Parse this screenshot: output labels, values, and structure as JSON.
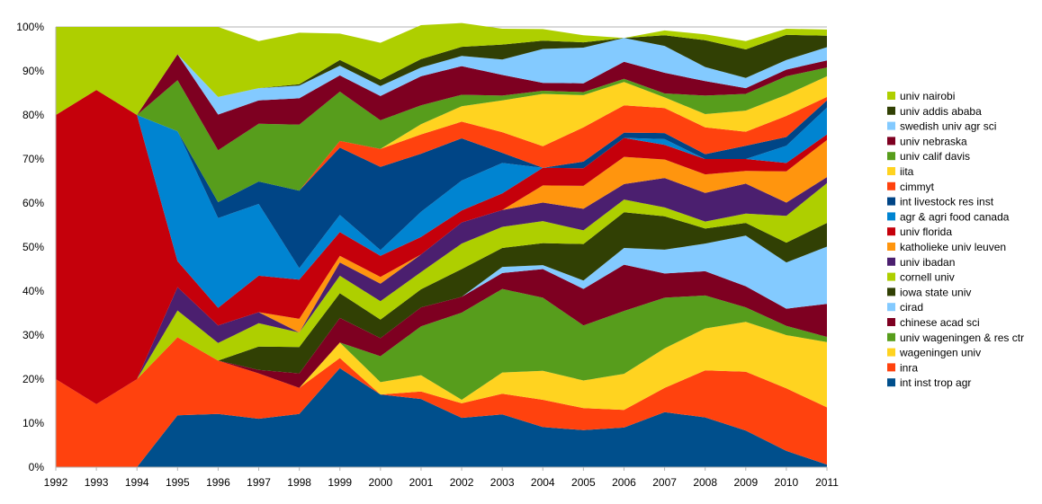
{
  "chart_data": {
    "type": "area",
    "stacked": true,
    "normalized": true,
    "x": [
      1992,
      1993,
      1994,
      1995,
      1996,
      1997,
      1998,
      1999,
      2000,
      2001,
      2002,
      2003,
      2004,
      2005,
      2006,
      2007,
      2008,
      2009,
      2010,
      2011
    ],
    "ylim": [
      0,
      100
    ],
    "y_ticks": [
      "0%",
      "10%",
      "20%",
      "30%",
      "40%",
      "50%",
      "60%",
      "70%",
      "80%",
      "90%",
      "100%"
    ],
    "x_ticks": [
      "1992",
      "1993",
      "1994",
      "1995",
      "1996",
      "1997",
      "1998",
      "1999",
      "2000",
      "2001",
      "2002",
      "2003",
      "2004",
      "2005",
      "2006",
      "2007",
      "2008",
      "2009",
      "2010",
      "2011"
    ],
    "grid": true,
    "legend_position": "right",
    "series": [
      {
        "name": "int inst trop agr",
        "color": "#004f8c",
        "values": [
          0,
          0,
          0,
          11.8,
          12.1,
          11.0,
          12.1,
          22.5,
          16.5,
          15.5,
          11.2,
          12.0,
          9.1,
          8.4,
          9.0,
          12.5,
          11.3,
          8.3,
          3.7,
          0.6
        ]
      },
      {
        "name": "inra",
        "color": "#ff420e",
        "values": [
          20,
          14.3,
          20,
          17.7,
          12.1,
          10.3,
          5.9,
          2.3,
          0.0,
          1.7,
          3.3,
          4.7,
          6.2,
          5.0,
          4.0,
          5.5,
          10.7,
          13.4,
          14.2,
          13.0
        ]
      },
      {
        "name": "wageningen  univ",
        "color": "#ffd320",
        "values": [
          0,
          0,
          0,
          0,
          0,
          0,
          0,
          3.5,
          2.8,
          3.7,
          0.8,
          4.8,
          6.6,
          6.3,
          8.2,
          9.0,
          9.5,
          11.3,
          12.1,
          14.8
        ]
      },
      {
        "name": "univ wageningen & res ctr",
        "color": "#579d1c",
        "values": [
          0,
          0,
          0,
          0,
          0,
          0,
          0,
          0,
          5.9,
          11.1,
          19.8,
          19.0,
          16.6,
          12.5,
          14.3,
          11.5,
          7.5,
          3.3,
          2.1,
          1.2
        ]
      },
      {
        "name": "chinese acad sci",
        "color": "#7e0021",
        "values": [
          0,
          0,
          0,
          0,
          0,
          0.8,
          3.3,
          5.6,
          4.1,
          4.3,
          3.6,
          3.6,
          6.5,
          8.3,
          10.5,
          5.5,
          5.5,
          4.8,
          3.9,
          7.5
        ]
      },
      {
        "name": "cirad",
        "color": "#83caff",
        "values": [
          0,
          0,
          0,
          0,
          0,
          0,
          0,
          0,
          0,
          0,
          0,
          1.4,
          0.9,
          1.9,
          3.8,
          5.4,
          6.3,
          11.5,
          10.5,
          13.0
        ]
      },
      {
        "name": "iowa state univ",
        "color": "#314004",
        "values": [
          0,
          0,
          0,
          0,
          0,
          5.3,
          6.0,
          5.6,
          4.2,
          4.1,
          6.3,
          4.3,
          5.0,
          8.3,
          8.1,
          7.6,
          3.4,
          2.9,
          4.5,
          5.4
        ]
      },
      {
        "name": "cornell univ",
        "color": "#aecf00",
        "values": [
          0,
          0,
          0,
          6.1,
          4.0,
          5.3,
          3.3,
          4.0,
          4.2,
          3.9,
          5.8,
          4.8,
          5.0,
          3.1,
          2.9,
          2.0,
          1.6,
          2.1,
          6.1,
          9.0
        ]
      },
      {
        "name": "univ ibadan",
        "color": "#4b1f6f",
        "values": [
          0,
          0,
          0,
          5.3,
          4.0,
          2.5,
          0,
          3.0,
          4.0,
          4.0,
          4.8,
          3.8,
          4.2,
          4.9,
          3.5,
          6.7,
          6.5,
          6.8,
          3.0,
          1.4
        ]
      },
      {
        "name": "katholieke univ leuven",
        "color": "#ff950e",
        "values": [
          0,
          0,
          0,
          0,
          0,
          0,
          3.1,
          1.5,
          1.5,
          0,
          0,
          0,
          3.9,
          5.2,
          6.2,
          4.2,
          4.2,
          2.9,
          7.1,
          8.4
        ]
      },
      {
        "name": "univ florida",
        "color": "#c5000b",
        "values": [
          60,
          71.4,
          60,
          5.9,
          4.0,
          8.3,
          8.9,
          5.4,
          4.8,
          4.0,
          2.7,
          3.8,
          4.0,
          4.0,
          4.3,
          3.3,
          3.5,
          2.7,
          1.9,
          1.3
        ]
      },
      {
        "name": "agr & agri food canada",
        "color": "#0084d1",
        "values": [
          0,
          0,
          0,
          29.5,
          20.4,
          16.3,
          2.6,
          3.9,
          1.3,
          5.7,
          6.8,
          6.9,
          0,
          0,
          0,
          1.3,
          0,
          0,
          3.9,
          6.1
        ]
      },
      {
        "name": "int livestock res inst",
        "color": "#004586",
        "values": [
          0,
          0,
          0,
          0,
          3.6,
          5.1,
          17.6,
          15.3,
          18.9,
          13.2,
          9.6,
          2.3,
          0,
          1.5,
          1.2,
          1.4,
          1.1,
          3.0,
          2.0,
          1.6
        ]
      },
      {
        "name": "cimmyt",
        "color": "#ff420e",
        "values": [
          0,
          0,
          0,
          0,
          0,
          0,
          0,
          1.5,
          4.1,
          4.4,
          3.8,
          4.7,
          4.9,
          7.8,
          6.2,
          5.7,
          6.1,
          3.2,
          4.8,
          0.8
        ]
      },
      {
        "name": "iita",
        "color": "#ffd320",
        "values": [
          0,
          0,
          0,
          0,
          0,
          0,
          0,
          0,
          0,
          2.3,
          3.5,
          7.2,
          11.9,
          7.3,
          5.3,
          2.4,
          3.0,
          4.8,
          4.8,
          4.7
        ]
      },
      {
        "name": "univ calif davis",
        "color": "#579d1c",
        "values": [
          0,
          0,
          0,
          11.6,
          11.8,
          13.1,
          15.0,
          11.2,
          6.5,
          4.3,
          2.6,
          1.1,
          0.7,
          0.7,
          0.7,
          0.9,
          4.2,
          3.8,
          4.2,
          2.0
        ]
      },
      {
        "name": "univ nebraska",
        "color": "#7e0021",
        "values": [
          0,
          0,
          0,
          5.9,
          8.1,
          5.3,
          6.0,
          3.7,
          5.5,
          6.6,
          6.5,
          4.7,
          1.8,
          2.0,
          3.9,
          4.7,
          3.3,
          1.3,
          1.5,
          1.6
        ]
      },
      {
        "name": "swedish univ agr sci",
        "color": "#83caff",
        "values": [
          0,
          0,
          0,
          0,
          4.0,
          2.8,
          2.9,
          2.2,
          2.3,
          2.0,
          2.3,
          3.5,
          7.7,
          8.1,
          5.4,
          6.1,
          3.2,
          2.3,
          2.2,
          3.0
        ]
      },
      {
        "name": "univ addis ababa",
        "color": "#314004",
        "values": [
          0,
          0,
          0,
          0,
          0,
          0,
          0.3,
          1.3,
          1.4,
          1.9,
          2.1,
          3.4,
          1.9,
          1.2,
          0,
          2.4,
          6.1,
          6.5,
          5.7,
          2.6
        ]
      },
      {
        "name": "univ nairobi",
        "color": "#aecf00",
        "values": [
          20,
          14.3,
          20,
          6.2,
          15.9,
          10.7,
          11.7,
          6.0,
          8.4,
          7.7,
          5.4,
          3.6,
          2.6,
          1.6,
          0,
          1.1,
          1.3,
          1.9,
          1.4,
          1.4
        ]
      }
    ]
  }
}
